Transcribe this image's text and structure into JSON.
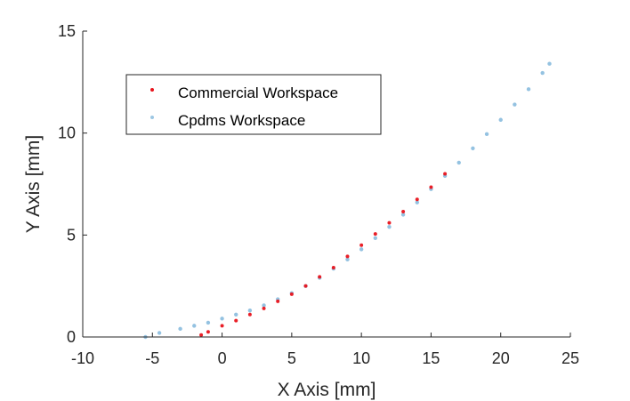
{
  "chart_data": {
    "type": "scatter",
    "xlabel": "X Axis [mm]",
    "ylabel": "Y Axis [mm]",
    "xlim": [
      -10,
      25
    ],
    "ylim": [
      0,
      15
    ],
    "xticks": [
      "-10",
      "-5",
      "0",
      "5",
      "10",
      "15",
      "20",
      "25"
    ],
    "yticks": [
      "0",
      "5",
      "10",
      "15"
    ],
    "grid": false,
    "legend_position": "top-left",
    "series": [
      {
        "name": "Commercial Workspace",
        "color": "#e8141c",
        "points": [
          [
            -1.5,
            0.1
          ],
          [
            -1.0,
            0.25
          ],
          [
            0,
            0.55
          ],
          [
            1,
            0.8
          ],
          [
            2,
            1.1
          ],
          [
            3,
            1.4
          ],
          [
            4,
            1.75
          ],
          [
            5,
            2.1
          ],
          [
            6,
            2.5
          ],
          [
            7,
            2.95
          ],
          [
            8,
            3.4
          ],
          [
            9,
            3.95
          ],
          [
            10,
            4.5
          ],
          [
            11,
            5.05
          ],
          [
            12,
            5.6
          ],
          [
            13,
            6.15
          ],
          [
            14,
            6.75
          ],
          [
            15,
            7.35
          ],
          [
            16,
            8.0
          ]
        ]
      },
      {
        "name": "Cpdms Workspace",
        "color": "#3c8fc8",
        "points": [
          [
            -5.5,
            0.0
          ],
          [
            -4.5,
            0.2
          ],
          [
            -3,
            0.4
          ],
          [
            -2,
            0.55
          ],
          [
            -1,
            0.7
          ],
          [
            0,
            0.9
          ],
          [
            1,
            1.1
          ],
          [
            2,
            1.3
          ],
          [
            3,
            1.55
          ],
          [
            4,
            1.85
          ],
          [
            5,
            2.15
          ],
          [
            6,
            2.5
          ],
          [
            7,
            2.9
          ],
          [
            8,
            3.35
          ],
          [
            9,
            3.8
          ],
          [
            10,
            4.3
          ],
          [
            11,
            4.85
          ],
          [
            12,
            5.4
          ],
          [
            13,
            6.0
          ],
          [
            14,
            6.6
          ],
          [
            15,
            7.25
          ],
          [
            16,
            7.9
          ],
          [
            17,
            8.55
          ],
          [
            18,
            9.25
          ],
          [
            19,
            9.95
          ],
          [
            20,
            10.65
          ],
          [
            21,
            11.4
          ],
          [
            22,
            12.15
          ],
          [
            23,
            12.95
          ],
          [
            23.5,
            13.4
          ]
        ]
      }
    ]
  }
}
